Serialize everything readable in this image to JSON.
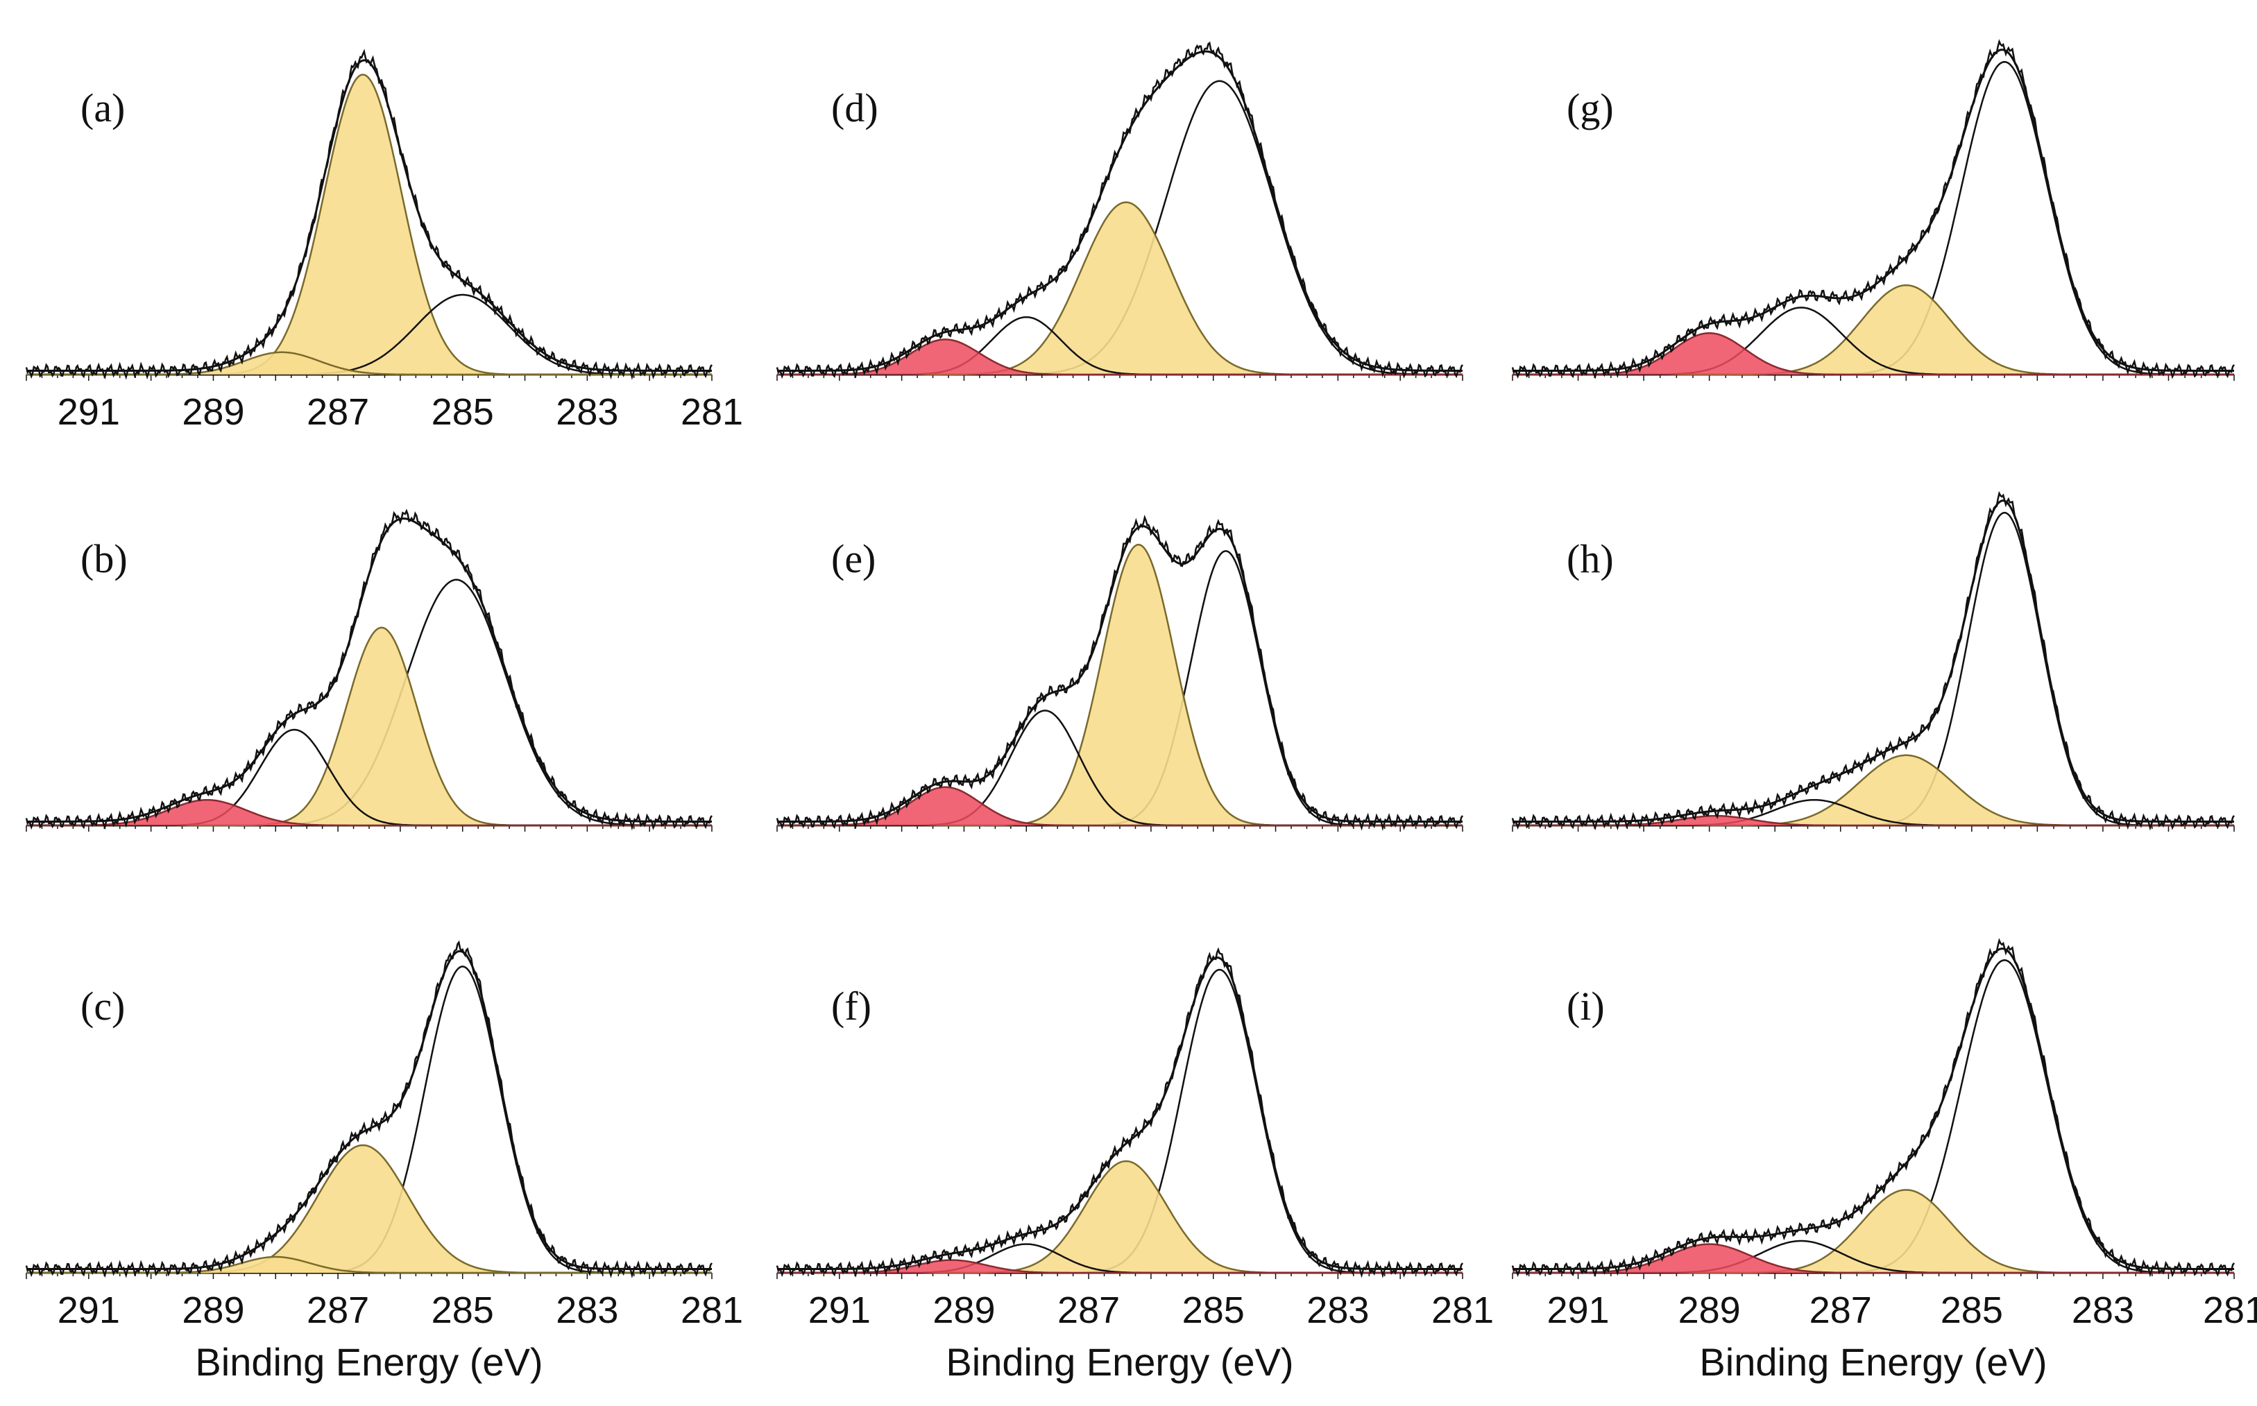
{
  "figure": {
    "xlabel": "Binding Energy (eV)"
  },
  "colors": {
    "yellow_fill": "#f7dd8e",
    "yellow_stroke": "#7a6a2a",
    "red_fill": "#ef4b5e",
    "red_stroke": "#8a2a30",
    "line": "#111111"
  },
  "chart_data": [
    {
      "label": "(a)",
      "type": "line",
      "xlim": [
        292,
        281
      ],
      "xticks": [
        291,
        289,
        287,
        285,
        283,
        281
      ],
      "xlabel": "",
      "peaks": [
        {
          "center": 286.6,
          "height": 0.94,
          "width": 0.62,
          "fill": "yellow"
        },
        {
          "center": 285.0,
          "height": 0.25,
          "width": 0.75,
          "fill": "none"
        },
        {
          "center": 287.9,
          "height": 0.07,
          "width": 0.6,
          "fill": "yellow"
        }
      ]
    },
    {
      "label": "(d)",
      "type": "line",
      "xlim": [
        292,
        281
      ],
      "xticks": [],
      "xlabel": "",
      "peaks": [
        {
          "center": 284.9,
          "height": 0.92,
          "width": 0.85,
          "fill": "none"
        },
        {
          "center": 286.4,
          "height": 0.54,
          "width": 0.72,
          "fill": "yellow"
        },
        {
          "center": 288.0,
          "height": 0.18,
          "width": 0.55,
          "fill": "none"
        },
        {
          "center": 289.3,
          "height": 0.11,
          "width": 0.55,
          "fill": "red"
        }
      ]
    },
    {
      "label": "(g)",
      "type": "line",
      "xlim": [
        292,
        281
      ],
      "xticks": [],
      "xlabel": "",
      "peaks": [
        {
          "center": 284.5,
          "height": 0.98,
          "width": 0.65,
          "fill": "none"
        },
        {
          "center": 286.0,
          "height": 0.28,
          "width": 0.68,
          "fill": "yellow"
        },
        {
          "center": 287.6,
          "height": 0.21,
          "width": 0.62,
          "fill": "none"
        },
        {
          "center": 289.0,
          "height": 0.13,
          "width": 0.55,
          "fill": "red"
        }
      ]
    },
    {
      "label": "(b)",
      "type": "line",
      "xlim": [
        292,
        281
      ],
      "xticks": [],
      "xlabel": "",
      "peaks": [
        {
          "center": 285.1,
          "height": 0.77,
          "width": 0.8,
          "fill": "none"
        },
        {
          "center": 286.3,
          "height": 0.62,
          "width": 0.56,
          "fill": "yellow"
        },
        {
          "center": 287.7,
          "height": 0.3,
          "width": 0.55,
          "fill": "none"
        },
        {
          "center": 289.1,
          "height": 0.08,
          "width": 0.62,
          "fill": "red"
        }
      ]
    },
    {
      "label": "(e)",
      "type": "line",
      "xlim": [
        292,
        281
      ],
      "xticks": [],
      "xlabel": "",
      "peaks": [
        {
          "center": 284.8,
          "height": 0.86,
          "width": 0.55,
          "fill": "none"
        },
        {
          "center": 286.2,
          "height": 0.88,
          "width": 0.58,
          "fill": "yellow"
        },
        {
          "center": 287.7,
          "height": 0.36,
          "width": 0.55,
          "fill": "none"
        },
        {
          "center": 289.3,
          "height": 0.12,
          "width": 0.55,
          "fill": "red"
        }
      ]
    },
    {
      "label": "(h)",
      "type": "line",
      "xlim": [
        292,
        281
      ],
      "xticks": [],
      "xlabel": "",
      "peaks": [
        {
          "center": 284.5,
          "height": 0.98,
          "width": 0.55,
          "fill": "none"
        },
        {
          "center": 286.0,
          "height": 0.22,
          "width": 0.72,
          "fill": "yellow"
        },
        {
          "center": 287.4,
          "height": 0.08,
          "width": 0.6,
          "fill": "none"
        },
        {
          "center": 288.9,
          "height": 0.03,
          "width": 0.55,
          "fill": "red"
        }
      ]
    },
    {
      "label": "(c)",
      "type": "line",
      "xlim": [
        292,
        281
      ],
      "xticks": [
        291,
        289,
        287,
        285,
        283,
        281
      ],
      "xlabel": "Binding Energy (eV)",
      "peaks": [
        {
          "center": 285.0,
          "height": 0.96,
          "width": 0.6,
          "fill": "none"
        },
        {
          "center": 286.6,
          "height": 0.4,
          "width": 0.72,
          "fill": "yellow"
        },
        {
          "center": 288.0,
          "height": 0.05,
          "width": 0.55,
          "fill": "yellow"
        }
      ]
    },
    {
      "label": "(f)",
      "type": "line",
      "xlim": [
        292,
        281
      ],
      "xticks": [
        291,
        289,
        287,
        285,
        283,
        281
      ],
      "xlabel": "Binding Energy (eV)",
      "peaks": [
        {
          "center": 284.9,
          "height": 0.95,
          "width": 0.6,
          "fill": "none"
        },
        {
          "center": 286.4,
          "height": 0.35,
          "width": 0.65,
          "fill": "yellow"
        },
        {
          "center": 288.0,
          "height": 0.09,
          "width": 0.55,
          "fill": "none"
        },
        {
          "center": 289.2,
          "height": 0.04,
          "width": 0.55,
          "fill": "red"
        }
      ]
    },
    {
      "label": "(i)",
      "type": "line",
      "xlim": [
        292,
        281
      ],
      "xticks": [
        291,
        289,
        287,
        285,
        283,
        281
      ],
      "xlabel": "Binding Energy (eV)",
      "peaks": [
        {
          "center": 284.5,
          "height": 0.98,
          "width": 0.65,
          "fill": "none"
        },
        {
          "center": 286.0,
          "height": 0.26,
          "width": 0.68,
          "fill": "yellow"
        },
        {
          "center": 287.6,
          "height": 0.1,
          "width": 0.62,
          "fill": "none"
        },
        {
          "center": 289.0,
          "height": 0.09,
          "width": 0.62,
          "fill": "red"
        }
      ]
    }
  ]
}
